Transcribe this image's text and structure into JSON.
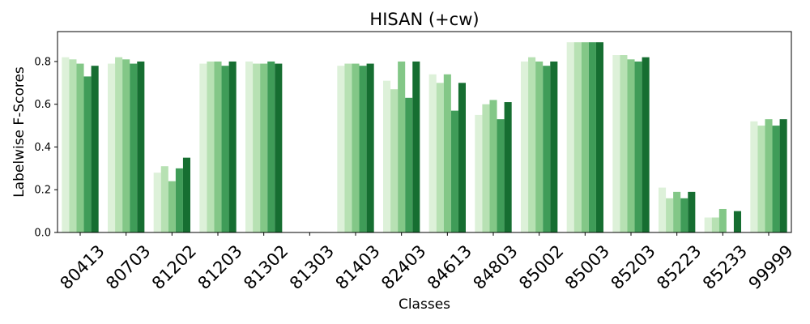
{
  "chart_data": {
    "type": "bar",
    "title": "HISAN (+cw)",
    "xlabel": "Classes",
    "ylabel": "Labelwise F-Scores",
    "ylim": [
      0,
      0.94
    ],
    "yticks": [
      0.0,
      0.2,
      0.4,
      0.6,
      0.8
    ],
    "ytick_labels": [
      "0.0",
      "0.2",
      "0.4",
      "0.6",
      "0.8"
    ],
    "grid": false,
    "legend": "none",
    "categories": [
      "80413",
      "80703",
      "81202",
      "81203",
      "81302",
      "81303",
      "81403",
      "82403",
      "84613",
      "84803",
      "85002",
      "85003",
      "85203",
      "85223",
      "85233",
      "99999"
    ],
    "series": [
      {
        "color": "#ddf1d9",
        "values": [
          0.82,
          0.79,
          0.28,
          0.79,
          0.8,
          0.0,
          0.78,
          0.71,
          0.74,
          0.55,
          0.8,
          0.89,
          0.83,
          0.21,
          0.07,
          0.52
        ]
      },
      {
        "color": "#b7e1b3",
        "values": [
          0.81,
          0.82,
          0.31,
          0.8,
          0.79,
          0.0,
          0.79,
          0.67,
          0.7,
          0.6,
          0.82,
          0.89,
          0.83,
          0.16,
          0.07,
          0.5
        ]
      },
      {
        "color": "#83c787",
        "values": [
          0.79,
          0.81,
          0.24,
          0.8,
          0.79,
          0.0,
          0.79,
          0.8,
          0.74,
          0.62,
          0.8,
          0.89,
          0.81,
          0.19,
          0.11,
          0.53
        ]
      },
      {
        "color": "#3f9c58",
        "values": [
          0.73,
          0.79,
          0.3,
          0.78,
          0.8,
          0.0,
          0.78,
          0.63,
          0.57,
          0.53,
          0.78,
          0.89,
          0.8,
          0.16,
          0.0,
          0.5
        ]
      },
      {
        "color": "#166e31",
        "values": [
          0.78,
          0.8,
          0.35,
          0.8,
          0.79,
          0.0,
          0.79,
          0.8,
          0.7,
          0.61,
          0.8,
          0.89,
          0.82,
          0.19,
          0.1,
          0.53
        ]
      }
    ]
  }
}
